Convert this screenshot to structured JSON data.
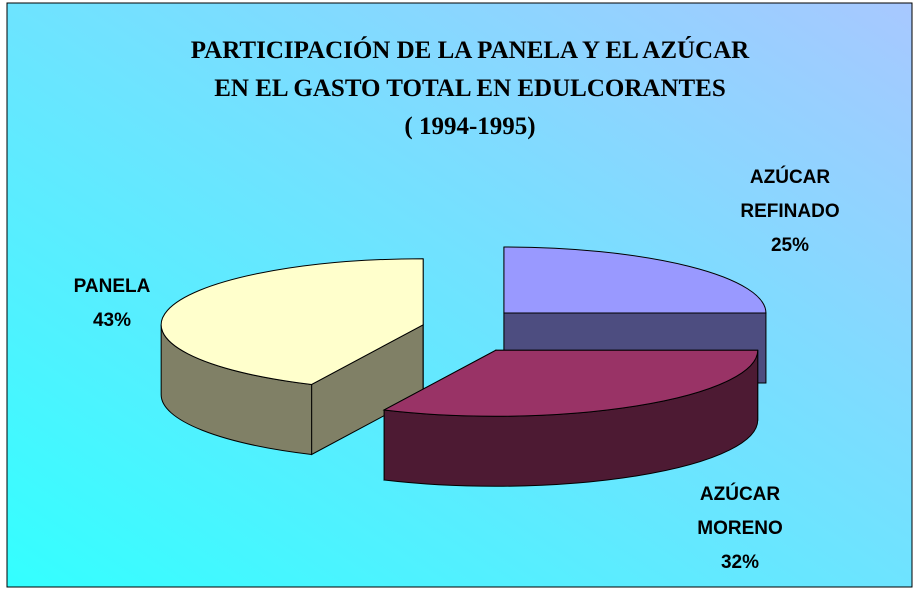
{
  "chart_data": {
    "type": "pie3d",
    "title": [
      "PARTICIPACIÓN DE LA PANELA  Y EL AZÚCAR",
      "EN EL GASTO TOTAL EN EDULCORANTES",
      "( 1994-1995)"
    ],
    "categories": [
      "AZÚCAR REFINADO",
      "AZÚCAR MORENO",
      "PANELA"
    ],
    "values": [
      25,
      32,
      43
    ],
    "value_labels": [
      "25%",
      "32%",
      "43%"
    ],
    "colors": [
      "#9999ff",
      "#993366",
      "#ffffcc"
    ]
  }
}
